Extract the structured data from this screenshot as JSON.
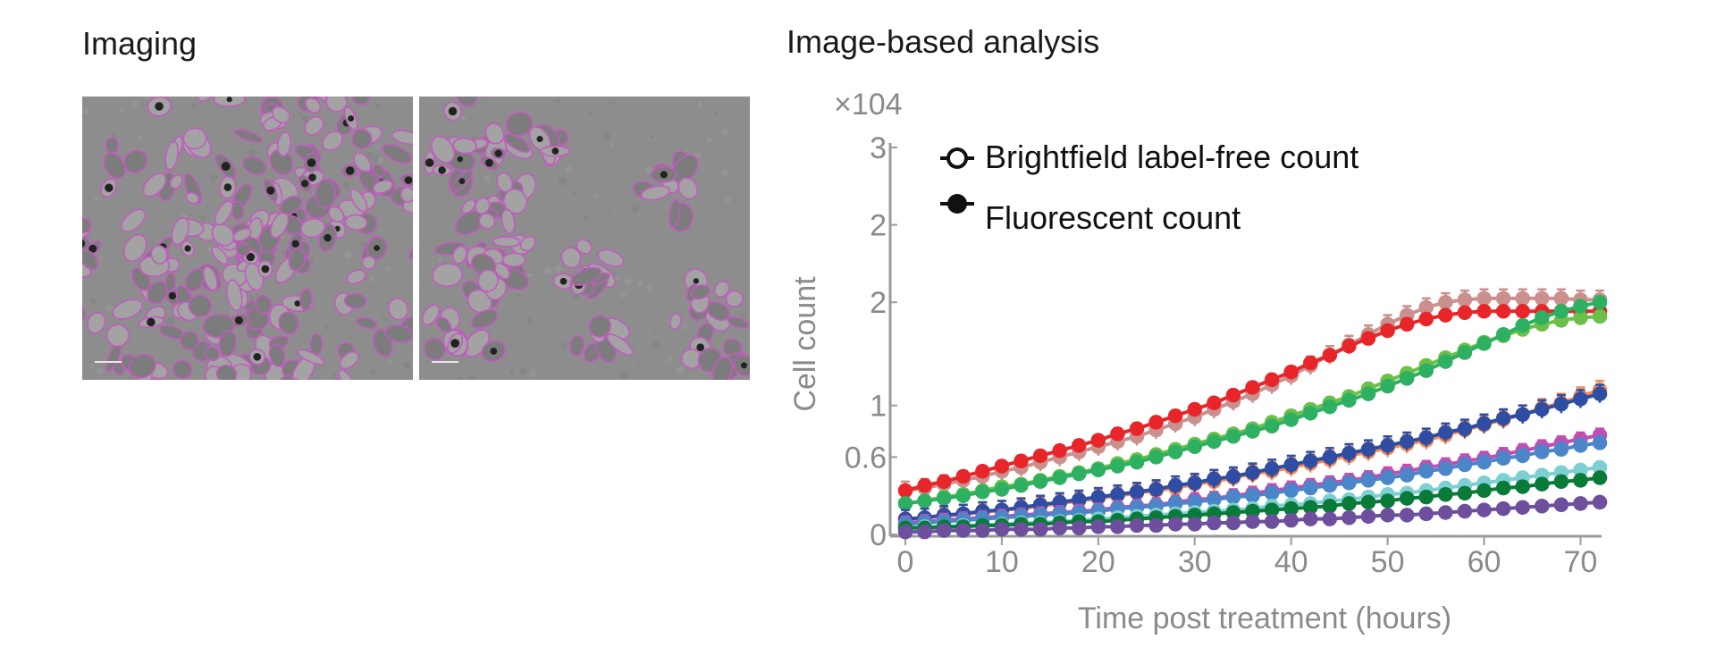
{
  "left_panel": {
    "title": "Imaging"
  },
  "right_panel": {
    "title": "Image-based analysis"
  },
  "chart_data": {
    "type": "line",
    "multiplier_label": "×104",
    "xlabel": "Time post treatment (hours)",
    "ylabel": "Cell count",
    "xlim": [
      0,
      72
    ],
    "ylim": [
      0,
      3
    ],
    "x_ticks": [
      0,
      10,
      20,
      30,
      40,
      50,
      60,
      70
    ],
    "y_ticks": [
      {
        "label": "0",
        "value": 0
      },
      {
        "label": "0.6",
        "value": 0.6
      },
      {
        "label": "1",
        "value": 1.0
      },
      {
        "label": "2",
        "value": 1.8
      },
      {
        "label": "2",
        "value": 2.4
      },
      {
        "label": "3",
        "value": 3.0
      }
    ],
    "legend": {
      "position": "top-left",
      "entries": [
        {
          "label": "Brightfield label-free count",
          "marker": "open-circle"
        },
        {
          "label": "Fluorescent count",
          "marker": "filled-circle"
        }
      ]
    },
    "x": [
      0,
      2,
      4,
      6,
      8,
      10,
      12,
      14,
      16,
      18,
      20,
      22,
      24,
      26,
      28,
      30,
      32,
      34,
      36,
      38,
      40,
      42,
      44,
      46,
      48,
      50,
      52,
      54,
      56,
      58,
      60,
      62,
      64,
      66,
      68,
      70,
      72
    ],
    "series": [
      {
        "color": "#c9908e",
        "values": [
          0.34,
          0.36,
          0.39,
          0.42,
          0.45,
          0.49,
          0.52,
          0.56,
          0.6,
          0.64,
          0.68,
          0.72,
          0.76,
          0.81,
          0.86,
          0.91,
          0.97,
          1.03,
          1.09,
          1.16,
          1.23,
          1.31,
          1.39,
          1.47,
          1.55,
          1.63,
          1.7,
          1.76,
          1.8,
          1.82,
          1.83,
          1.83,
          1.83,
          1.83,
          1.83,
          1.82,
          1.82
        ],
        "err": 0.07
      },
      {
        "color": "#e8262a",
        "values": [
          0.34,
          0.38,
          0.41,
          0.45,
          0.49,
          0.53,
          0.57,
          0.61,
          0.65,
          0.69,
          0.73,
          0.78,
          0.82,
          0.87,
          0.92,
          0.97,
          1.02,
          1.08,
          1.14,
          1.2,
          1.26,
          1.33,
          1.39,
          1.46,
          1.52,
          1.58,
          1.63,
          1.67,
          1.7,
          1.72,
          1.73,
          1.73,
          1.73,
          1.73,
          1.73,
          1.73,
          1.73
        ],
        "err": 0.04
      },
      {
        "color": "#6cc04a",
        "values": [
          0.24,
          0.26,
          0.29,
          0.31,
          0.34,
          0.37,
          0.39,
          0.42,
          0.45,
          0.48,
          0.51,
          0.55,
          0.58,
          0.62,
          0.66,
          0.7,
          0.74,
          0.78,
          0.82,
          0.87,
          0.92,
          0.97,
          1.02,
          1.07,
          1.13,
          1.19,
          1.25,
          1.31,
          1.37,
          1.43,
          1.49,
          1.54,
          1.59,
          1.63,
          1.66,
          1.68,
          1.69
        ],
        "err": 0.04
      },
      {
        "color": "#2eb062",
        "values": [
          0.24,
          0.26,
          0.28,
          0.3,
          0.33,
          0.35,
          0.38,
          0.41,
          0.44,
          0.47,
          0.5,
          0.53,
          0.56,
          0.6,
          0.64,
          0.68,
          0.72,
          0.76,
          0.8,
          0.84,
          0.89,
          0.94,
          0.99,
          1.04,
          1.09,
          1.15,
          1.21,
          1.27,
          1.34,
          1.41,
          1.48,
          1.55,
          1.62,
          1.68,
          1.73,
          1.77,
          1.8
        ],
        "err": 0.04
      },
      {
        "color": "#f58b55",
        "values": [
          0.12,
          0.13,
          0.14,
          0.16,
          0.17,
          0.19,
          0.2,
          0.22,
          0.24,
          0.26,
          0.28,
          0.3,
          0.32,
          0.34,
          0.36,
          0.39,
          0.41,
          0.44,
          0.47,
          0.49,
          0.52,
          0.55,
          0.58,
          0.61,
          0.64,
          0.67,
          0.7,
          0.73,
          0.77,
          0.81,
          0.85,
          0.89,
          0.93,
          0.98,
          1.02,
          1.07,
          1.12
        ],
        "err": 0.07
      },
      {
        "color": "#2f4ea3",
        "values": [
          0.12,
          0.13,
          0.15,
          0.16,
          0.18,
          0.19,
          0.21,
          0.23,
          0.25,
          0.27,
          0.29,
          0.31,
          0.33,
          0.35,
          0.38,
          0.4,
          0.43,
          0.45,
          0.48,
          0.51,
          0.54,
          0.57,
          0.6,
          0.63,
          0.66,
          0.69,
          0.72,
          0.75,
          0.79,
          0.82,
          0.86,
          0.9,
          0.93,
          0.97,
          1.01,
          1.05,
          1.09
        ],
        "err": 0.07
      },
      {
        "color": "#c34db3",
        "values": [
          0.09,
          0.1,
          0.11,
          0.12,
          0.13,
          0.14,
          0.15,
          0.16,
          0.17,
          0.18,
          0.19,
          0.21,
          0.22,
          0.23,
          0.25,
          0.27,
          0.28,
          0.3,
          0.32,
          0.34,
          0.36,
          0.38,
          0.4,
          0.42,
          0.44,
          0.47,
          0.49,
          0.52,
          0.54,
          0.57,
          0.59,
          0.62,
          0.65,
          0.68,
          0.71,
          0.74,
          0.77
        ],
        "err": 0.05
      },
      {
        "color": "#4a86c8",
        "values": [
          0.08,
          0.09,
          0.1,
          0.11,
          0.12,
          0.13,
          0.14,
          0.15,
          0.16,
          0.17,
          0.18,
          0.2,
          0.21,
          0.22,
          0.24,
          0.25,
          0.27,
          0.29,
          0.3,
          0.32,
          0.34,
          0.36,
          0.38,
          0.4,
          0.42,
          0.44,
          0.46,
          0.49,
          0.51,
          0.54,
          0.56,
          0.59,
          0.61,
          0.64,
          0.66,
          0.69,
          0.71
        ],
        "err": 0.05
      },
      {
        "color": "#7ecfd4",
        "values": [
          0.05,
          0.06,
          0.06,
          0.07,
          0.07,
          0.08,
          0.09,
          0.09,
          0.1,
          0.11,
          0.12,
          0.13,
          0.14,
          0.15,
          0.16,
          0.17,
          0.18,
          0.19,
          0.2,
          0.22,
          0.23,
          0.24,
          0.26,
          0.27,
          0.29,
          0.31,
          0.32,
          0.34,
          0.36,
          0.38,
          0.4,
          0.42,
          0.44,
          0.46,
          0.48,
          0.5,
          0.52
        ],
        "err": 0.04
      },
      {
        "color": "#0a7a38",
        "values": [
          0.05,
          0.05,
          0.06,
          0.06,
          0.07,
          0.07,
          0.08,
          0.08,
          0.09,
          0.1,
          0.1,
          0.11,
          0.12,
          0.13,
          0.14,
          0.15,
          0.16,
          0.17,
          0.18,
          0.19,
          0.2,
          0.21,
          0.22,
          0.24,
          0.25,
          0.26,
          0.28,
          0.29,
          0.31,
          0.32,
          0.34,
          0.36,
          0.37,
          0.39,
          0.41,
          0.42,
          0.44
        ],
        "err": 0.04
      },
      {
        "color": "#6e4f9e",
        "values": [
          0.02,
          0.02,
          0.03,
          0.03,
          0.03,
          0.04,
          0.04,
          0.04,
          0.05,
          0.05,
          0.06,
          0.06,
          0.07,
          0.07,
          0.08,
          0.08,
          0.09,
          0.09,
          0.1,
          0.1,
          0.11,
          0.12,
          0.12,
          0.13,
          0.14,
          0.15,
          0.15,
          0.16,
          0.17,
          0.18,
          0.19,
          0.2,
          0.21,
          0.22,
          0.23,
          0.24,
          0.25
        ],
        "err": 0.02
      }
    ]
  }
}
